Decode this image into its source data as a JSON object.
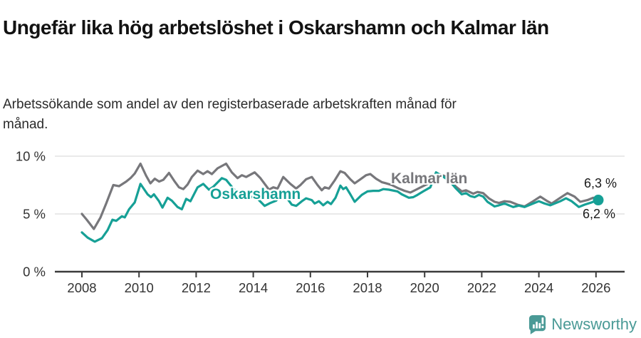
{
  "header": {
    "title": "Ungefär lika hög arbetslöshet i Oskarshamn och Kalmar län",
    "subtitle": "Arbetssökande som andel av den registerbaserade arbetskraften månad för månad."
  },
  "footer": {
    "brand": "Newsworthy"
  },
  "colors": {
    "oskarshamn": "#16a096",
    "kalmar": "#77777b",
    "gridline": "#dcdcdc",
    "axis": "#3c3c3c",
    "tick_text": "#333333",
    "logo_teal": "#4a9a96",
    "value_label_text": "#1a1a1a"
  },
  "chart_data": {
    "type": "line",
    "title": "Ungefär lika hög arbetslöshet i Oskarshamn och Kalmar län",
    "subtitle": "Arbetssökande som andel av den registerbaserade arbetskraften månad för månad.",
    "unit": "%",
    "x_axis": {
      "ticks": [
        2008,
        2010,
        2012,
        2014,
        2016,
        2018,
        2020,
        2022,
        2024,
        2026
      ],
      "labels": [
        "2008",
        "2010",
        "2012",
        "2014",
        "2016",
        "2018",
        "2020",
        "2022",
        "2024",
        "2026"
      ],
      "range": [
        2007.05,
        2027.0
      ]
    },
    "y_axis": {
      "ticks": [
        {
          "value": 0,
          "label": "0 %"
        },
        {
          "value": 5,
          "label": "5 %"
        },
        {
          "value": 10,
          "label": "10 %"
        }
      ],
      "range": [
        0,
        10.8
      ],
      "grid": true
    },
    "legend_position": "inline-labels",
    "series": [
      {
        "name": "Kalmar län",
        "color": "#77777b",
        "end_label": "6,3 %",
        "end_value": 6.3,
        "end_dot": false,
        "points": [
          [
            2008.0,
            5.0
          ],
          [
            2008.17,
            4.5
          ],
          [
            2008.42,
            3.7
          ],
          [
            2008.65,
            4.7
          ],
          [
            2008.85,
            5.9
          ],
          [
            2009.1,
            7.5
          ],
          [
            2009.3,
            7.4
          ],
          [
            2009.55,
            7.8
          ],
          [
            2009.7,
            8.1
          ],
          [
            2009.85,
            8.5
          ],
          [
            2010.05,
            9.35
          ],
          [
            2010.25,
            8.3
          ],
          [
            2010.4,
            7.65
          ],
          [
            2010.55,
            8.05
          ],
          [
            2010.7,
            7.8
          ],
          [
            2010.85,
            7.95
          ],
          [
            2011.05,
            8.55
          ],
          [
            2011.25,
            7.8
          ],
          [
            2011.4,
            7.3
          ],
          [
            2011.55,
            7.15
          ],
          [
            2011.7,
            7.55
          ],
          [
            2011.85,
            8.2
          ],
          [
            2012.05,
            8.75
          ],
          [
            2012.25,
            8.45
          ],
          [
            2012.4,
            8.7
          ],
          [
            2012.55,
            8.45
          ],
          [
            2012.75,
            8.95
          ],
          [
            2013.05,
            9.35
          ],
          [
            2013.25,
            8.6
          ],
          [
            2013.45,
            8.1
          ],
          [
            2013.6,
            8.35
          ],
          [
            2013.75,
            8.2
          ],
          [
            2014.05,
            8.6
          ],
          [
            2014.25,
            8.1
          ],
          [
            2014.55,
            7.1
          ],
          [
            2014.7,
            7.3
          ],
          [
            2014.85,
            7.2
          ],
          [
            2015.05,
            8.2
          ],
          [
            2015.3,
            7.6
          ],
          [
            2015.5,
            7.2
          ],
          [
            2015.65,
            7.5
          ],
          [
            2015.85,
            8.0
          ],
          [
            2016.05,
            8.2
          ],
          [
            2016.25,
            7.5
          ],
          [
            2016.4,
            7.05
          ],
          [
            2016.5,
            7.3
          ],
          [
            2016.65,
            7.2
          ],
          [
            2016.85,
            7.9
          ],
          [
            2017.05,
            8.7
          ],
          [
            2017.2,
            8.55
          ],
          [
            2017.4,
            8.0
          ],
          [
            2017.55,
            7.65
          ],
          [
            2017.75,
            8.0
          ],
          [
            2017.95,
            8.35
          ],
          [
            2018.1,
            8.45
          ],
          [
            2018.3,
            8.05
          ],
          [
            2018.5,
            7.75
          ],
          [
            2018.65,
            7.65
          ],
          [
            2018.85,
            7.5
          ],
          [
            2019.1,
            7.2
          ],
          [
            2019.3,
            7.0
          ],
          [
            2019.5,
            6.85
          ],
          [
            2019.7,
            7.1
          ],
          [
            2019.9,
            7.35
          ],
          [
            2020.1,
            7.6
          ],
          [
            2020.35,
            8.3
          ],
          [
            2020.55,
            8.4
          ],
          [
            2020.8,
            8.2
          ],
          [
            2021.1,
            7.35
          ],
          [
            2021.3,
            6.95
          ],
          [
            2021.45,
            7.05
          ],
          [
            2021.7,
            6.75
          ],
          [
            2021.85,
            6.9
          ],
          [
            2022.05,
            6.8
          ],
          [
            2022.25,
            6.35
          ],
          [
            2022.45,
            6.05
          ],
          [
            2022.6,
            5.95
          ],
          [
            2022.8,
            6.1
          ],
          [
            2023.0,
            6.05
          ],
          [
            2023.25,
            5.8
          ],
          [
            2023.5,
            5.65
          ],
          [
            2023.8,
            6.1
          ],
          [
            2024.05,
            6.5
          ],
          [
            2024.3,
            6.1
          ],
          [
            2024.45,
            5.9
          ],
          [
            2024.75,
            6.4
          ],
          [
            2025.0,
            6.8
          ],
          [
            2025.25,
            6.5
          ],
          [
            2025.45,
            6.05
          ],
          [
            2025.7,
            6.2
          ],
          [
            2025.9,
            6.4
          ],
          [
            2026.08,
            6.3
          ]
        ]
      },
      {
        "name": "Oskarshamn",
        "color": "#16a096",
        "end_label": "6,2 %",
        "end_value": 6.2,
        "end_dot": true,
        "points": [
          [
            2008.0,
            3.4
          ],
          [
            2008.2,
            2.95
          ],
          [
            2008.45,
            2.6
          ],
          [
            2008.7,
            2.9
          ],
          [
            2008.9,
            3.6
          ],
          [
            2009.07,
            4.5
          ],
          [
            2009.2,
            4.4
          ],
          [
            2009.4,
            4.8
          ],
          [
            2009.5,
            4.7
          ],
          [
            2009.65,
            5.4
          ],
          [
            2009.85,
            6.0
          ],
          [
            2010.05,
            7.6
          ],
          [
            2010.3,
            6.7
          ],
          [
            2010.42,
            6.45
          ],
          [
            2010.52,
            6.7
          ],
          [
            2010.7,
            6.1
          ],
          [
            2010.82,
            5.55
          ],
          [
            2011.0,
            6.4
          ],
          [
            2011.15,
            6.15
          ],
          [
            2011.35,
            5.6
          ],
          [
            2011.5,
            5.4
          ],
          [
            2011.65,
            6.3
          ],
          [
            2011.8,
            6.1
          ],
          [
            2012.05,
            7.3
          ],
          [
            2012.25,
            7.6
          ],
          [
            2012.45,
            7.1
          ],
          [
            2012.6,
            7.35
          ],
          [
            2012.9,
            8.1
          ],
          [
            2013.05,
            7.95
          ],
          [
            2013.3,
            7.2
          ],
          [
            2013.55,
            6.6
          ],
          [
            2013.8,
            6.3
          ],
          [
            2014.05,
            6.6
          ],
          [
            2014.2,
            6.2
          ],
          [
            2014.4,
            5.7
          ],
          [
            2014.6,
            5.95
          ],
          [
            2014.8,
            6.15
          ],
          [
            2015.05,
            6.9
          ],
          [
            2015.2,
            6.3
          ],
          [
            2015.35,
            5.8
          ],
          [
            2015.5,
            5.7
          ],
          [
            2015.7,
            6.1
          ],
          [
            2015.85,
            6.35
          ],
          [
            2016.05,
            6.2
          ],
          [
            2016.15,
            5.9
          ],
          [
            2016.3,
            6.1
          ],
          [
            2016.45,
            5.75
          ],
          [
            2016.6,
            6.05
          ],
          [
            2016.72,
            5.85
          ],
          [
            2016.88,
            6.4
          ],
          [
            2017.05,
            7.45
          ],
          [
            2017.15,
            7.15
          ],
          [
            2017.25,
            7.3
          ],
          [
            2017.4,
            6.7
          ],
          [
            2017.55,
            6.05
          ],
          [
            2017.8,
            6.65
          ],
          [
            2018.0,
            6.95
          ],
          [
            2018.2,
            7.0
          ],
          [
            2018.4,
            7.0
          ],
          [
            2018.55,
            7.15
          ],
          [
            2018.75,
            7.1
          ],
          [
            2019.05,
            6.95
          ],
          [
            2019.2,
            6.7
          ],
          [
            2019.45,
            6.4
          ],
          [
            2019.6,
            6.45
          ],
          [
            2019.75,
            6.65
          ],
          [
            2019.95,
            6.95
          ],
          [
            2020.2,
            7.3
          ],
          [
            2020.4,
            8.6
          ],
          [
            2020.6,
            8.3
          ],
          [
            2020.85,
            7.9
          ],
          [
            2021.1,
            7.2
          ],
          [
            2021.3,
            6.7
          ],
          [
            2021.45,
            6.8
          ],
          [
            2021.6,
            6.55
          ],
          [
            2021.75,
            6.45
          ],
          [
            2021.9,
            6.65
          ],
          [
            2022.05,
            6.5
          ],
          [
            2022.2,
            6.05
          ],
          [
            2022.45,
            5.65
          ],
          [
            2022.6,
            5.75
          ],
          [
            2022.8,
            5.9
          ],
          [
            2022.95,
            5.75
          ],
          [
            2023.1,
            5.6
          ],
          [
            2023.3,
            5.72
          ],
          [
            2023.5,
            5.6
          ],
          [
            2023.8,
            5.9
          ],
          [
            2024.0,
            6.1
          ],
          [
            2024.2,
            5.9
          ],
          [
            2024.4,
            5.75
          ],
          [
            2024.75,
            6.1
          ],
          [
            2024.95,
            6.35
          ],
          [
            2025.15,
            6.1
          ],
          [
            2025.4,
            5.6
          ],
          [
            2025.6,
            5.8
          ],
          [
            2025.85,
            6.0
          ],
          [
            2026.08,
            6.2
          ]
        ]
      }
    ]
  }
}
